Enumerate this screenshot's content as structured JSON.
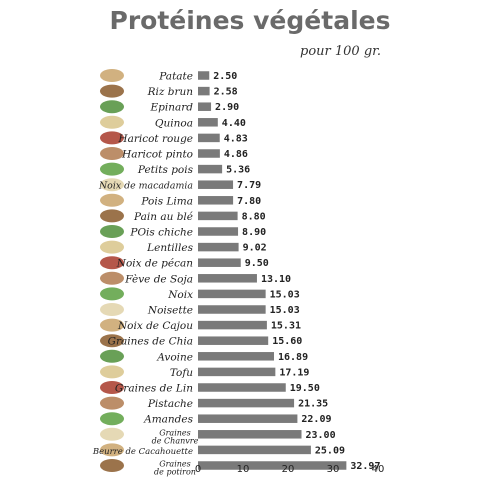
{
  "title": "Protéines végétales",
  "subtitle": "pour 100 gr.",
  "chart_data": {
    "type": "bar",
    "orientation": "horizontal",
    "title": "Protéines végétales",
    "subtitle": "pour 100 gr.",
    "xlim": [
      0,
      40
    ],
    "x_ticks": [
      "0",
      "10",
      "20",
      "30",
      "40"
    ],
    "grid": false,
    "categories": [
      "Patate",
      "Riz brun",
      "Epinard",
      "Quinoa",
      "Haricot rouge",
      "Haricot pinto",
      "Petits pois",
      "Noix de macadamia",
      "Pois Lima",
      "Pain au blé",
      "POis chiche",
      "Lentilles",
      "Noix de pécan",
      "Fève de Soja",
      "Noix",
      "Noisette",
      "Noix de Cajou",
      "Graines de Chia",
      "Avoine",
      "Tofu",
      "Graines de Lin",
      "Pistache",
      "Amandes",
      "Graines de Chanvre",
      "Beurre de Cacahouette",
      "Graines de potiron"
    ],
    "values": [
      2.5,
      2.58,
      2.9,
      4.4,
      4.83,
      4.86,
      5.36,
      7.79,
      7.8,
      8.8,
      8.9,
      9.02,
      9.5,
      13.1,
      15.03,
      15.03,
      15.31,
      15.6,
      16.89,
      17.19,
      19.5,
      21.35,
      22.09,
      23.0,
      25.09,
      32.97
    ],
    "value_labels": [
      "2.50",
      "2.58",
      "2.90",
      "4.40",
      "4.83",
      "4.86",
      "5.36",
      "7.79",
      "7.80",
      "8.80",
      "8.90",
      "9.02",
      "9.50",
      "13.10",
      "15.03",
      "15.03",
      "15.31",
      "15.60",
      "16.89",
      "17.19",
      "19.50",
      "21.35",
      "22.09",
      "23.00",
      "25.09",
      "32.97"
    ],
    "bar_color": "#7a7a7a"
  }
}
